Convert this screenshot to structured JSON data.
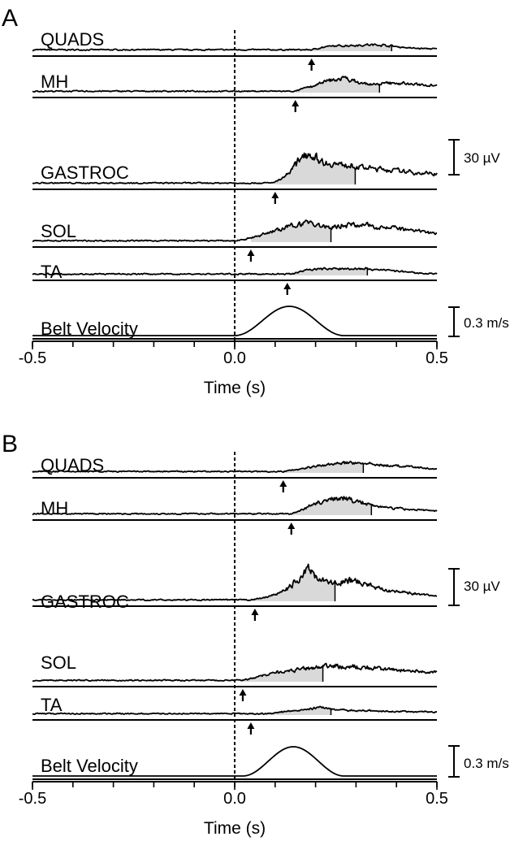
{
  "chart_data": [
    {
      "type": "line",
      "panel_label": "A",
      "xlabel": "Time (s)",
      "xlim": [
        -0.5,
        0.5
      ],
      "x_ticks": [
        {
          "value": -0.5,
          "label": "-0.5"
        },
        {
          "value": 0.0,
          "label": "0.0"
        },
        {
          "value": 0.5,
          "label": "0.5"
        }
      ],
      "minor_tick_step": 0.1,
      "onset_marker": "dashed vertical line at t = 0.0 s",
      "series": [
        {
          "name": "QUADS",
          "onset": 0.19,
          "shade_end": 0.39,
          "peak_uv": 5,
          "envelope": [
            [
              0.19,
              0
            ],
            [
              0.21,
              2
            ],
            [
              0.24,
              3.5
            ],
            [
              0.28,
              4.2
            ],
            [
              0.33,
              4.8
            ],
            [
              0.37,
              4.5
            ],
            [
              0.4,
              3
            ],
            [
              0.44,
              1.5
            ],
            [
              0.5,
              0.8
            ]
          ]
        },
        {
          "name": "MH",
          "onset": 0.15,
          "shade_end": 0.36,
          "peak_uv": 13,
          "envelope": [
            [
              0.15,
              0
            ],
            [
              0.17,
              3
            ],
            [
              0.2,
              6
            ],
            [
              0.23,
              10
            ],
            [
              0.27,
              13
            ],
            [
              0.3,
              9
            ],
            [
              0.34,
              6
            ],
            [
              0.38,
              8
            ],
            [
              0.42,
              7.5
            ],
            [
              0.46,
              6
            ],
            [
              0.5,
              6.5
            ]
          ]
        },
        {
          "name": "GASTROC",
          "onset": 0.1,
          "shade_end": 0.3,
          "peak_uv": 30,
          "envelope": [
            [
              0.09,
              0
            ],
            [
              0.11,
              3
            ],
            [
              0.13,
              9
            ],
            [
              0.15,
              18
            ],
            [
              0.17,
              30
            ],
            [
              0.19,
              27
            ],
            [
              0.21,
              22
            ],
            [
              0.23,
              19
            ],
            [
              0.26,
              18
            ],
            [
              0.3,
              16
            ],
            [
              0.35,
              14
            ],
            [
              0.4,
              12
            ],
            [
              0.45,
              10
            ],
            [
              0.5,
              9
            ]
          ]
        },
        {
          "name": "SOL",
          "onset": 0.04,
          "shade_end": 0.24,
          "peak_uv": 19,
          "envelope": [
            [
              0.0,
              0
            ],
            [
              0.03,
              2
            ],
            [
              0.06,
              5
            ],
            [
              0.09,
              9
            ],
            [
              0.12,
              12
            ],
            [
              0.15,
              15
            ],
            [
              0.18,
              19
            ],
            [
              0.21,
              14
            ],
            [
              0.24,
              13
            ],
            [
              0.28,
              16
            ],
            [
              0.32,
              15
            ],
            [
              0.36,
              14
            ],
            [
              0.4,
              12
            ],
            [
              0.45,
              9
            ],
            [
              0.5,
              7
            ]
          ]
        },
        {
          "name": "TA",
          "onset": 0.13,
          "shade_end": 0.33,
          "peak_uv": 6,
          "envelope": [
            [
              0.14,
              0
            ],
            [
              0.16,
              2.5
            ],
            [
              0.18,
              4.5
            ],
            [
              0.21,
              5
            ],
            [
              0.25,
              5
            ],
            [
              0.29,
              5.5
            ],
            [
              0.33,
              5
            ],
            [
              0.37,
              4
            ],
            [
              0.41,
              2.5
            ],
            [
              0.45,
              1
            ],
            [
              0.5,
              0.3
            ]
          ]
        },
        {
          "name": "Belt Velocity",
          "type": "velocity",
          "start": 0.0,
          "end": 0.27,
          "peak_time": 0.135,
          "peak": 0.3,
          "unit": "m/s"
        }
      ],
      "scale_bars": [
        {
          "value": "30 µV",
          "series": "GASTROC"
        },
        {
          "value": "0.3 m/s",
          "series": "Belt Velocity"
        }
      ]
    },
    {
      "type": "line",
      "panel_label": "B",
      "xlabel": "Time (s)",
      "xlim": [
        -0.5,
        0.5
      ],
      "x_ticks": [
        {
          "value": -0.5,
          "label": "-0.5"
        },
        {
          "value": 0.0,
          "label": "0.0"
        },
        {
          "value": 0.5,
          "label": "0.5"
        }
      ],
      "minor_tick_step": 0.1,
      "onset_marker": "dashed vertical line at t = 0.0 s",
      "series": [
        {
          "name": "QUADS",
          "onset": 0.12,
          "shade_end": 0.32,
          "peak_uv": 10,
          "envelope": [
            [
              0.12,
              0
            ],
            [
              0.15,
              2
            ],
            [
              0.18,
              4
            ],
            [
              0.22,
              6
            ],
            [
              0.26,
              8
            ],
            [
              0.3,
              9
            ],
            [
              0.33,
              7.5
            ],
            [
              0.37,
              6
            ],
            [
              0.41,
              5
            ],
            [
              0.45,
              4
            ],
            [
              0.5,
              2
            ]
          ]
        },
        {
          "name": "MH",
          "onset": 0.14,
          "shade_end": 0.34,
          "peak_uv": 17,
          "envelope": [
            [
              0.14,
              0
            ],
            [
              0.17,
              5
            ],
            [
              0.2,
              10
            ],
            [
              0.23,
              14
            ],
            [
              0.26,
              16
            ],
            [
              0.29,
              13
            ],
            [
              0.32,
              10
            ],
            [
              0.36,
              7
            ],
            [
              0.4,
              5
            ],
            [
              0.45,
              4
            ],
            [
              0.5,
              3
            ]
          ]
        },
        {
          "name": "GASTROC",
          "onset": 0.05,
          "shade_end": 0.25,
          "peak_uv": 30,
          "envelope": [
            [
              0.04,
              0
            ],
            [
              0.07,
              2
            ],
            [
              0.1,
              5
            ],
            [
              0.13,
              11
            ],
            [
              0.15,
              18
            ],
            [
              0.17,
              26
            ],
            [
              0.18,
              30
            ],
            [
              0.2,
              24
            ],
            [
              0.22,
              18
            ],
            [
              0.25,
              16
            ],
            [
              0.28,
              19
            ],
            [
              0.31,
              17
            ],
            [
              0.35,
              12
            ],
            [
              0.4,
              8
            ],
            [
              0.45,
              6
            ],
            [
              0.5,
              4
            ]
          ]
        },
        {
          "name": "SOL",
          "onset": 0.02,
          "shade_end": 0.22,
          "peak_uv": 15,
          "envelope": [
            [
              0.02,
              0
            ],
            [
              0.05,
              3
            ],
            [
              0.08,
              6
            ],
            [
              0.11,
              8
            ],
            [
              0.15,
              10
            ],
            [
              0.19,
              12
            ],
            [
              0.22,
              13
            ],
            [
              0.25,
              14
            ],
            [
              0.28,
              13
            ],
            [
              0.32,
              12
            ],
            [
              0.36,
              11
            ],
            [
              0.4,
              10
            ],
            [
              0.45,
              9
            ],
            [
              0.5,
              8
            ]
          ]
        },
        {
          "name": "TA",
          "onset": 0.04,
          "shade_end": 0.24,
          "peak_uv": 10,
          "envelope": [
            [
              0.09,
              0
            ],
            [
              0.12,
              2
            ],
            [
              0.15,
              3
            ],
            [
              0.18,
              4
            ],
            [
              0.2,
              6
            ],
            [
              0.21,
              8
            ],
            [
              0.22,
              5
            ],
            [
              0.25,
              3.5
            ],
            [
              0.3,
              3
            ],
            [
              0.35,
              2.5
            ],
            [
              0.4,
              2
            ],
            [
              0.45,
              2
            ],
            [
              0.5,
              1.5
            ]
          ]
        },
        {
          "name": "Belt Velocity",
          "type": "velocity",
          "start": 0.02,
          "end": 0.27,
          "peak_time": 0.135,
          "peak": 0.3,
          "unit": "m/s"
        }
      ],
      "scale_bars": [
        {
          "value": "30 µV",
          "series": "GASTROC"
        },
        {
          "value": "0.3 m/s",
          "series": "Belt Velocity"
        }
      ]
    }
  ]
}
